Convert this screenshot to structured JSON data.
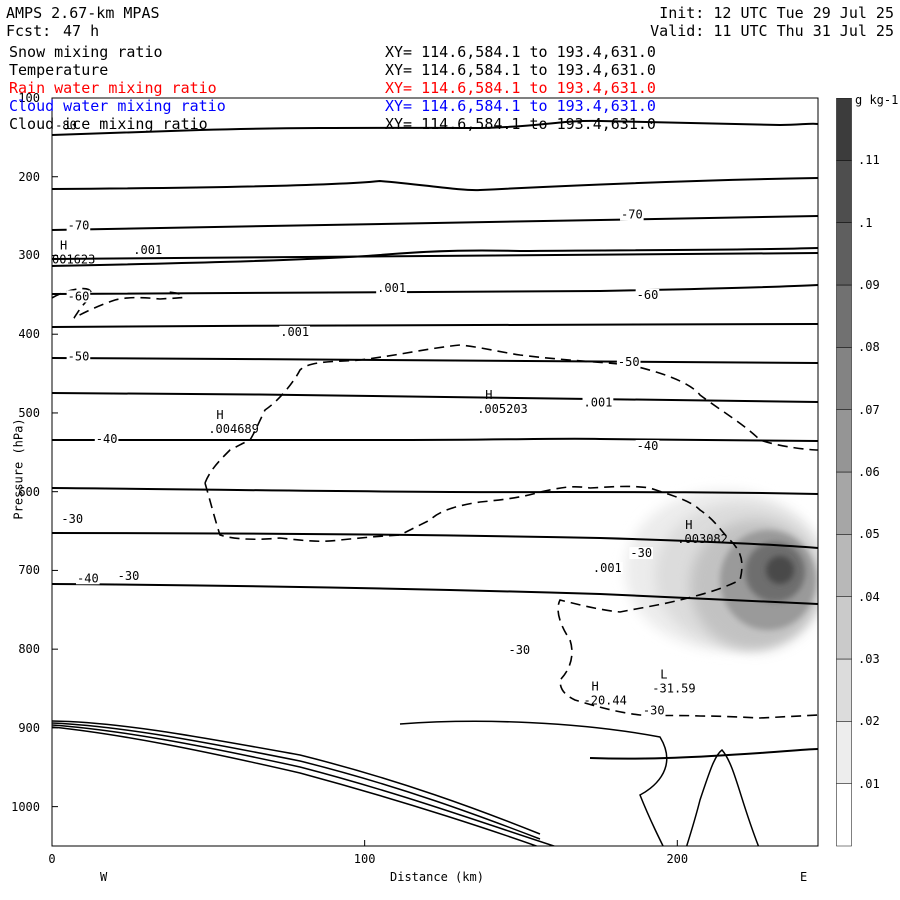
{
  "header": {
    "model": "AMPS 2.67-km MPAS",
    "forecast_label": "Fcst:",
    "forecast_value": "47 h",
    "init": "Init: 12 UTC Tue 29 Jul 25",
    "valid": "Valid: 11 UTC Thu 31 Jul 25"
  },
  "fields": [
    {
      "name": "Snow mixing ratio",
      "xy": "XY= 114.6,584.1 to 193.4,631.0",
      "color": "#000000"
    },
    {
      "name": "Temperature",
      "xy": "XY= 114.6,584.1 to 193.4,631.0",
      "color": "#000000"
    },
    {
      "name": "Rain water mixing ratio",
      "xy": "XY= 114.6,584.1 to 193.4,631.0",
      "color": "#ff0000"
    },
    {
      "name": "Cloud water mixing ratio",
      "xy": "XY= 114.6,584.1 to 193.4,631.0",
      "color": "#0000ff"
    },
    {
      "name": "Cloud ice mixing ratio",
      "xy": "XY= 114.6,584.1 to 193.4,631.0",
      "color": "#000000"
    }
  ],
  "chart_data": {
    "type": "cross-section",
    "xlabel": "Distance (km)",
    "ylabel": "Pressure (hPa)",
    "x_ticks": [
      "0",
      "100",
      "200"
    ],
    "y_ticks": [
      "100",
      "200",
      "300",
      "400",
      "500",
      "600",
      "700",
      "800",
      "900",
      "1000"
    ],
    "xlim": [
      0,
      245
    ],
    "ylim": [
      100,
      1050
    ],
    "x_left_label": "W",
    "x_right_label": "E",
    "colorbar": {
      "unit": "g kg-1",
      "ticks": [
        ".01",
        ".02",
        ".03",
        ".04",
        ".05",
        ".06",
        ".07",
        ".08",
        ".09",
        ".1",
        ".11"
      ],
      "range": [
        0.005,
        0.125
      ]
    },
    "temperature_contour_labels": [
      {
        "text": "-80",
        "x": 1,
        "p": 135
      },
      {
        "text": "-70",
        "x": 5,
        "p": 262
      },
      {
        "text": "-70",
        "x": 182,
        "p": 248
      },
      {
        "text": "-60",
        "x": 5,
        "p": 352
      },
      {
        "text": "-60",
        "x": 187,
        "p": 350
      },
      {
        "text": "-50",
        "x": 5,
        "p": 428
      },
      {
        "text": "-50",
        "x": 181,
        "p": 435
      },
      {
        "text": "-40",
        "x": 14,
        "p": 533
      },
      {
        "text": "-40",
        "x": 187,
        "p": 542
      },
      {
        "text": "-30",
        "x": 3,
        "p": 635
      },
      {
        "text": "-30",
        "x": 185,
        "p": 678
      },
      {
        "text": "-40",
        "x": 8,
        "p": 710
      },
      {
        "text": "-30",
        "x": 21,
        "p": 707
      },
      {
        "text": "-30",
        "x": 146,
        "p": 801
      },
      {
        "text": "-30",
        "x": 189,
        "p": 878
      }
    ],
    "snow_contour_labels": [
      {
        "text": ".001",
        "x": 26,
        "p": 293
      },
      {
        "text": ".001",
        "x": 104,
        "p": 341
      },
      {
        "text": ".001",
        "x": 73,
        "p": 397
      },
      {
        "text": ".001",
        "x": 170,
        "p": 487
      },
      {
        "text": ".001",
        "x": 173,
        "p": 697
      }
    ],
    "extrema": [
      {
        "kind": "H",
        "value": "001623",
        "x": 0,
        "p": 300
      },
      {
        "kind": "H",
        "value": ".004689",
        "x": 50,
        "p": 515
      },
      {
        "kind": "H",
        "value": ".005203",
        "x": 136,
        "p": 490
      },
      {
        "kind": "H",
        "value": ".003082",
        "x": 200,
        "p": 655
      },
      {
        "kind": "H",
        "value": "-20.44",
        "x": 170,
        "p": 860
      },
      {
        "kind": "L",
        "value": "-31.59",
        "x": 192,
        "p": 845
      }
    ],
    "grid": false,
    "legend": "colorbar-right"
  }
}
